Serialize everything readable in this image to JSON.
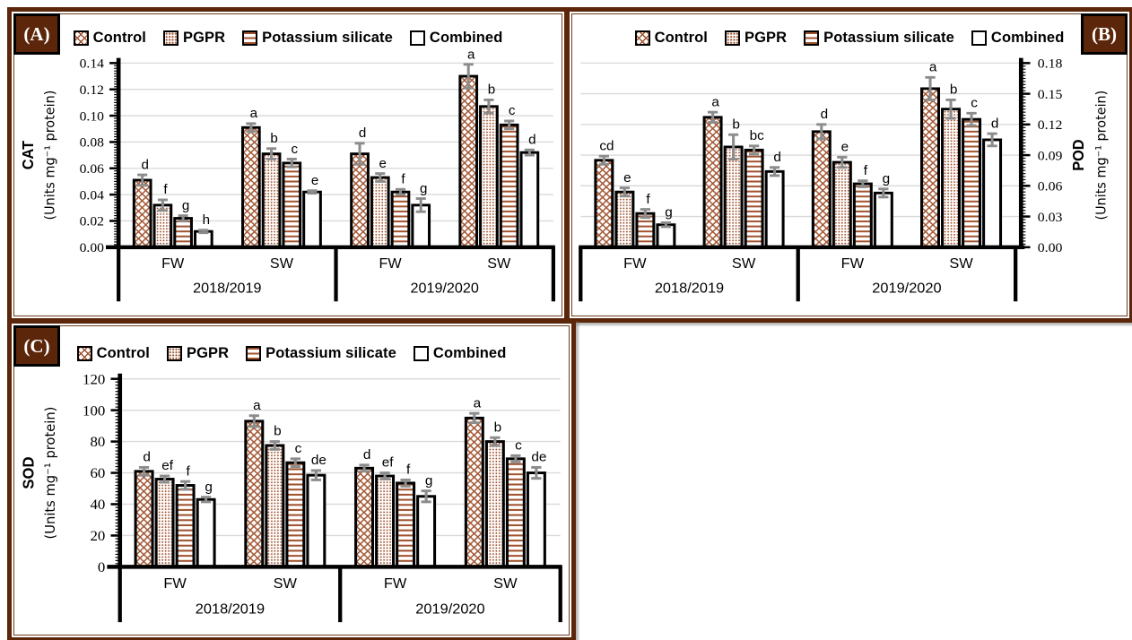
{
  "figure": {
    "background": "#FFFFFF",
    "panel_labels": [
      "(A)",
      "(B)",
      "(C)"
    ]
  },
  "colors": {
    "pattern_brown": "#A0522D",
    "bar_fill_bg": "#FFFFFF",
    "bar_border": "#000000",
    "error_bar": "#8C8C8C",
    "gridline": "#D9D9D9",
    "axis": "#000000",
    "frame_brown": "#5B2609",
    "panel_label_bg": "#5B2609",
    "panel_label_text": "#FFFFFF",
    "text": "#000000"
  },
  "series": [
    {
      "name": "Control",
      "pattern": "crosshatch"
    },
    {
      "name": "PGPR",
      "pattern": "dots"
    },
    {
      "name": "Potassium silicate",
      "pattern": "hlines"
    },
    {
      "name": "Combined",
      "pattern": "plain"
    }
  ],
  "chart_data": [
    {
      "type": "bar",
      "label": "(A)",
      "label_corner": "left",
      "axis_side": "left",
      "ylabel_title": "CAT",
      "ylabel_units": "(Units mg⁻¹ protein)",
      "ylim": [
        0,
        0.14
      ],
      "ystep": 0.02,
      "ydecimals": 2,
      "grid": true,
      "legend": [
        "Control",
        "PGPR",
        "Potassium silicate",
        "Combined"
      ],
      "x_row1": [
        "FW",
        "SW",
        "FW",
        "SW"
      ],
      "x_row2": [
        "2018/2019",
        "2019/2020"
      ],
      "groups": [
        {
          "year": "2018/2019",
          "water": "FW",
          "values": [
            0.051,
            0.032,
            0.022,
            0.012
          ],
          "errors": [
            0.004,
            0.004,
            0.002,
            0.001
          ],
          "letters": [
            "d",
            "f",
            "g",
            "h"
          ]
        },
        {
          "year": "2018/2019",
          "water": "SW",
          "values": [
            0.091,
            0.071,
            0.064,
            0.042
          ],
          "errors": [
            0.003,
            0.004,
            0.003,
            0.001
          ],
          "letters": [
            "a",
            "b",
            "c",
            "e"
          ]
        },
        {
          "year": "2019/2020",
          "water": "FW",
          "values": [
            0.071,
            0.053,
            0.042,
            0.032
          ],
          "errors": [
            0.008,
            0.003,
            0.002,
            0.005
          ],
          "letters": [
            "d",
            "e",
            "f",
            "g"
          ]
        },
        {
          "year": "2019/2020",
          "water": "SW",
          "values": [
            0.13,
            0.107,
            0.093,
            0.072
          ],
          "errors": [
            0.009,
            0.005,
            0.003,
            0.002
          ],
          "letters": [
            "a",
            "b",
            "c",
            "d"
          ]
        }
      ]
    },
    {
      "type": "bar",
      "label": "(B)",
      "label_corner": "right",
      "axis_side": "right",
      "ylabel_title": "POD",
      "ylabel_units": "(Units mg⁻¹ protein)",
      "ylim": [
        0,
        0.18
      ],
      "ystep": 0.03,
      "ydecimals": 2,
      "grid": true,
      "legend": [
        "Control",
        "PGPR",
        "Potassium silicate",
        "Combined"
      ],
      "x_row1": [
        "FW",
        "SW",
        "FW",
        "SW"
      ],
      "x_row2": [
        "2018/2019",
        "2019/2020"
      ],
      "groups": [
        {
          "year": "2018/2019",
          "water": "FW",
          "values": [
            0.085,
            0.054,
            0.033,
            0.022
          ],
          "errors": [
            0.004,
            0.004,
            0.004,
            0.002
          ],
          "letters": [
            "cd",
            "e",
            "f",
            "g"
          ]
        },
        {
          "year": "2018/2019",
          "water": "SW",
          "values": [
            0.127,
            0.098,
            0.095,
            0.074
          ],
          "errors": [
            0.005,
            0.012,
            0.004,
            0.004
          ],
          "letters": [
            "a",
            "b",
            "bc",
            "d"
          ]
        },
        {
          "year": "2019/2020",
          "water": "FW",
          "values": [
            0.113,
            0.083,
            0.062,
            0.053
          ],
          "errors": [
            0.007,
            0.005,
            0.003,
            0.004
          ],
          "letters": [
            "d",
            "e",
            "f",
            "g"
          ]
        },
        {
          "year": "2019/2020",
          "water": "SW",
          "values": [
            0.155,
            0.135,
            0.125,
            0.105
          ],
          "errors": [
            0.011,
            0.009,
            0.006,
            0.006
          ],
          "letters": [
            "a",
            "b",
            "c",
            "d"
          ]
        }
      ]
    },
    {
      "type": "bar",
      "label": "(C)",
      "label_corner": "left",
      "axis_side": "left",
      "ylabel_title": "SOD",
      "ylabel_units": "(Units mg⁻¹ protein)",
      "ylim": [
        0,
        120
      ],
      "ystep": 20,
      "ydecimals": 0,
      "grid": true,
      "legend": [
        "Control",
        "PGPR",
        "Potassium silicate",
        "Combined"
      ],
      "x_row1": [
        "FW",
        "SW",
        "FW",
        "SW"
      ],
      "x_row2": [
        "2018/2019",
        "2019/2020"
      ],
      "groups": [
        {
          "year": "2018/2019",
          "water": "FW",
          "values": [
            61,
            56,
            52,
            43
          ],
          "errors": [
            2.5,
            2,
            2.5,
            1.5
          ],
          "letters": [
            "d",
            "ef",
            "f",
            "g"
          ]
        },
        {
          "year": "2018/2019",
          "water": "SW",
          "values": [
            93,
            77.5,
            66.5,
            58.5
          ],
          "errors": [
            3.5,
            2.5,
            2.5,
            3
          ],
          "letters": [
            "a",
            "b",
            "c",
            "de"
          ]
        },
        {
          "year": "2019/2020",
          "water": "FW",
          "values": [
            63,
            58,
            53.5,
            45
          ],
          "errors": [
            2,
            2,
            2,
            3.5
          ],
          "letters": [
            "d",
            "ef",
            "f",
            "g"
          ]
        },
        {
          "year": "2019/2020",
          "water": "SW",
          "values": [
            95,
            80,
            69,
            60
          ],
          "errors": [
            3,
            2.5,
            2,
            3.5
          ],
          "letters": [
            "a",
            "b",
            "c",
            "de"
          ]
        }
      ]
    }
  ]
}
